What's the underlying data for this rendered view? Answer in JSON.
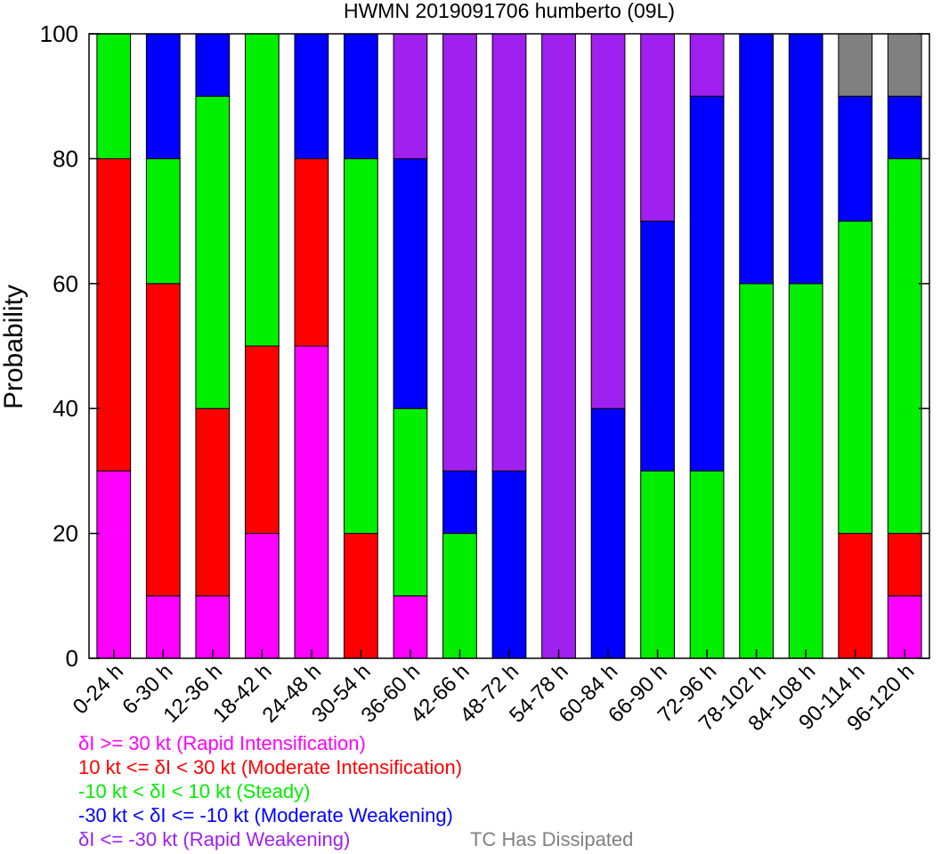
{
  "chart_data": {
    "type": "bar",
    "stacked": true,
    "title": "HWMN 2019091706 humberto (09L)",
    "xlabel": "",
    "ylabel": "Probability",
    "ylim": [
      0,
      100
    ],
    "yticks": [
      0,
      20,
      40,
      60,
      80,
      100
    ],
    "grid": false,
    "legend_position": "bottom",
    "categories": [
      "0-24 h",
      "6-30 h",
      "12-36 h",
      "18-42 h",
      "24-48 h",
      "30-54 h",
      "36-60 h",
      "42-66 h",
      "48-72 h",
      "54-78 h",
      "60-84 h",
      "66-90 h",
      "72-96 h",
      "78-102 h",
      "84-108 h",
      "90-114 h",
      "96-120 h"
    ],
    "series": [
      {
        "name": "δI >= 30 kt (Rapid Intensification)",
        "color": "#ff00ff",
        "values": [
          30,
          10,
          10,
          20,
          50,
          0,
          10,
          0,
          0,
          0,
          0,
          0,
          0,
          0,
          0,
          0,
          10
        ]
      },
      {
        "name": "10 kt <= δI < 30 kt (Moderate Intensification)",
        "color": "#ff0000",
        "values": [
          50,
          50,
          30,
          30,
          30,
          20,
          0,
          0,
          0,
          0,
          0,
          0,
          0,
          0,
          0,
          20,
          10
        ]
      },
      {
        "name": "-10 kt < δI < 10 kt (Steady)",
        "color": "#00ee00",
        "values": [
          20,
          20,
          50,
          50,
          0,
          60,
          30,
          20,
          0,
          0,
          0,
          30,
          30,
          60,
          60,
          50,
          60
        ]
      },
      {
        "name": "-30 kt < δI <= -10 kt (Moderate Weakening)",
        "color": "#0000ff",
        "values": [
          0,
          20,
          10,
          0,
          20,
          20,
          40,
          10,
          30,
          0,
          40,
          40,
          60,
          40,
          40,
          20,
          10
        ]
      },
      {
        "name": "δI <= -30 kt (Rapid Weakening)",
        "color": "#a020f0",
        "values": [
          0,
          0,
          0,
          0,
          0,
          0,
          20,
          70,
          70,
          100,
          60,
          30,
          10,
          0,
          0,
          0,
          0
        ]
      },
      {
        "name": "TC Has Dissipated",
        "color": "#808080",
        "values": [
          0,
          0,
          0,
          0,
          0,
          0,
          0,
          0,
          0,
          0,
          0,
          0,
          0,
          0,
          0,
          10,
          10
        ]
      }
    ]
  }
}
